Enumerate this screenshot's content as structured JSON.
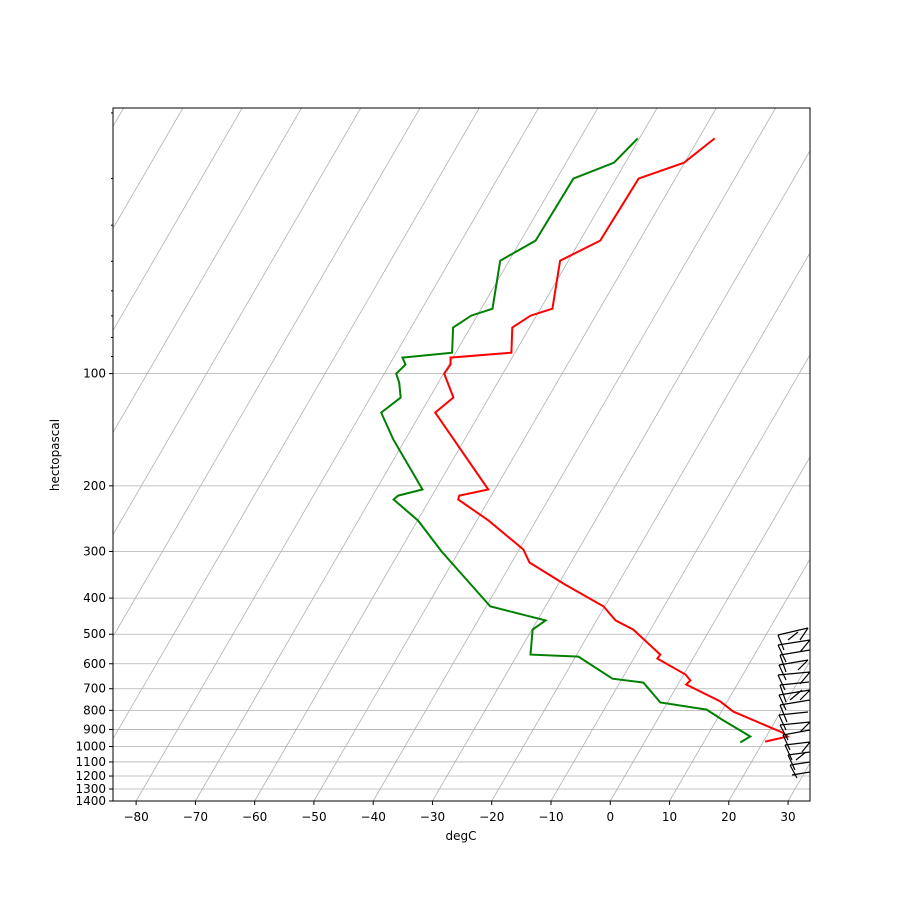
{
  "chart_data": {
    "type": "skewt",
    "xlabel": "degC",
    "ylabel": "hectopascal",
    "xlim": [
      -83.9,
      33.7
    ],
    "ylim": [
      1400,
      19.4
    ],
    "yscale": "log",
    "skew_deg": 30,
    "grid": true,
    "xticks": [
      {
        "value": -80,
        "label": "−80"
      },
      {
        "value": -70,
        "label": "−70"
      },
      {
        "value": -60,
        "label": "−60"
      },
      {
        "value": -50,
        "label": "−50"
      },
      {
        "value": -40,
        "label": "−40"
      },
      {
        "value": -30,
        "label": "−30"
      },
      {
        "value": -20,
        "label": "−20"
      },
      {
        "value": -10,
        "label": "−10"
      },
      0,
      10,
      20,
      30
    ],
    "yticks": [
      100,
      200,
      300,
      400,
      500,
      600,
      700,
      800,
      900,
      1000,
      1100,
      1200,
      1300,
      1400
    ],
    "yminorticks": [
      20,
      30,
      40,
      50,
      60,
      70,
      80,
      90
    ],
    "series": [
      {
        "color": "#ff0000",
        "pressure": [
          970,
          940,
          917,
          806,
          757,
          682,
          665,
          641,
          581,
          567,
          486,
          459,
          421,
          368,
          321,
          296.3,
          247.9,
          217.6,
          212.4,
          204.6,
          127.2,
          115.9,
          100,
          94.6,
          90.6,
          87.9,
          75.3,
          69.9,
          67.0,
          49.8,
          44.0,
          30.0,
          27.2,
          23.4
        ],
        "values": [
          20.3,
          23.6,
          22.3,
          12.0,
          8.8,
          1.4,
          1.7,
          0.3,
          -6.0,
          -5.9,
          -12.9,
          -16.8,
          -20.2,
          -28.8,
          -37.0,
          -39.3,
          -48.0,
          -55.2,
          -55.4,
          -51.1,
          -67.6,
          -66.0,
          -69.9,
          -69.7,
          -70.4,
          -60.6,
          -62.9,
          -61.0,
          -58.0,
          -61.4,
          -56.6,
          -56.2,
          -50.1,
          -47.3
        ]
      },
      {
        "color": "#008000",
        "pressure": [
          975,
          940,
          847,
          796,
          762,
          674,
          658,
          574,
          567,
          486,
          459,
          421,
          300,
          247.9,
          217.6,
          212.4,
          204.6,
          150.3,
          127.2,
          115.9,
          105.7,
          100,
          94.6,
          90.6,
          87.9,
          75.3,
          69.9,
          67.0,
          49.8,
          44.0,
          30.0,
          27.2,
          23.4
        ],
        "values": [
          16.2,
          17.3,
          10.9,
          7.3,
          -1.2,
          -6.0,
          -11.6,
          -19.5,
          -27.8,
          -29.9,
          -28.6,
          -39.3,
          -52.9,
          -59.9,
          -66.1,
          -65.7,
          -62.2,
          -72.0,
          -76.7,
          -74.9,
          -76.6,
          -78.0,
          -77.3,
          -78.5,
          -70.6,
          -72.9,
          -71.0,
          -68.1,
          -71.5,
          -67.5,
          -67.2,
          -61.9,
          -60.3
        ]
      }
    ]
  }
}
